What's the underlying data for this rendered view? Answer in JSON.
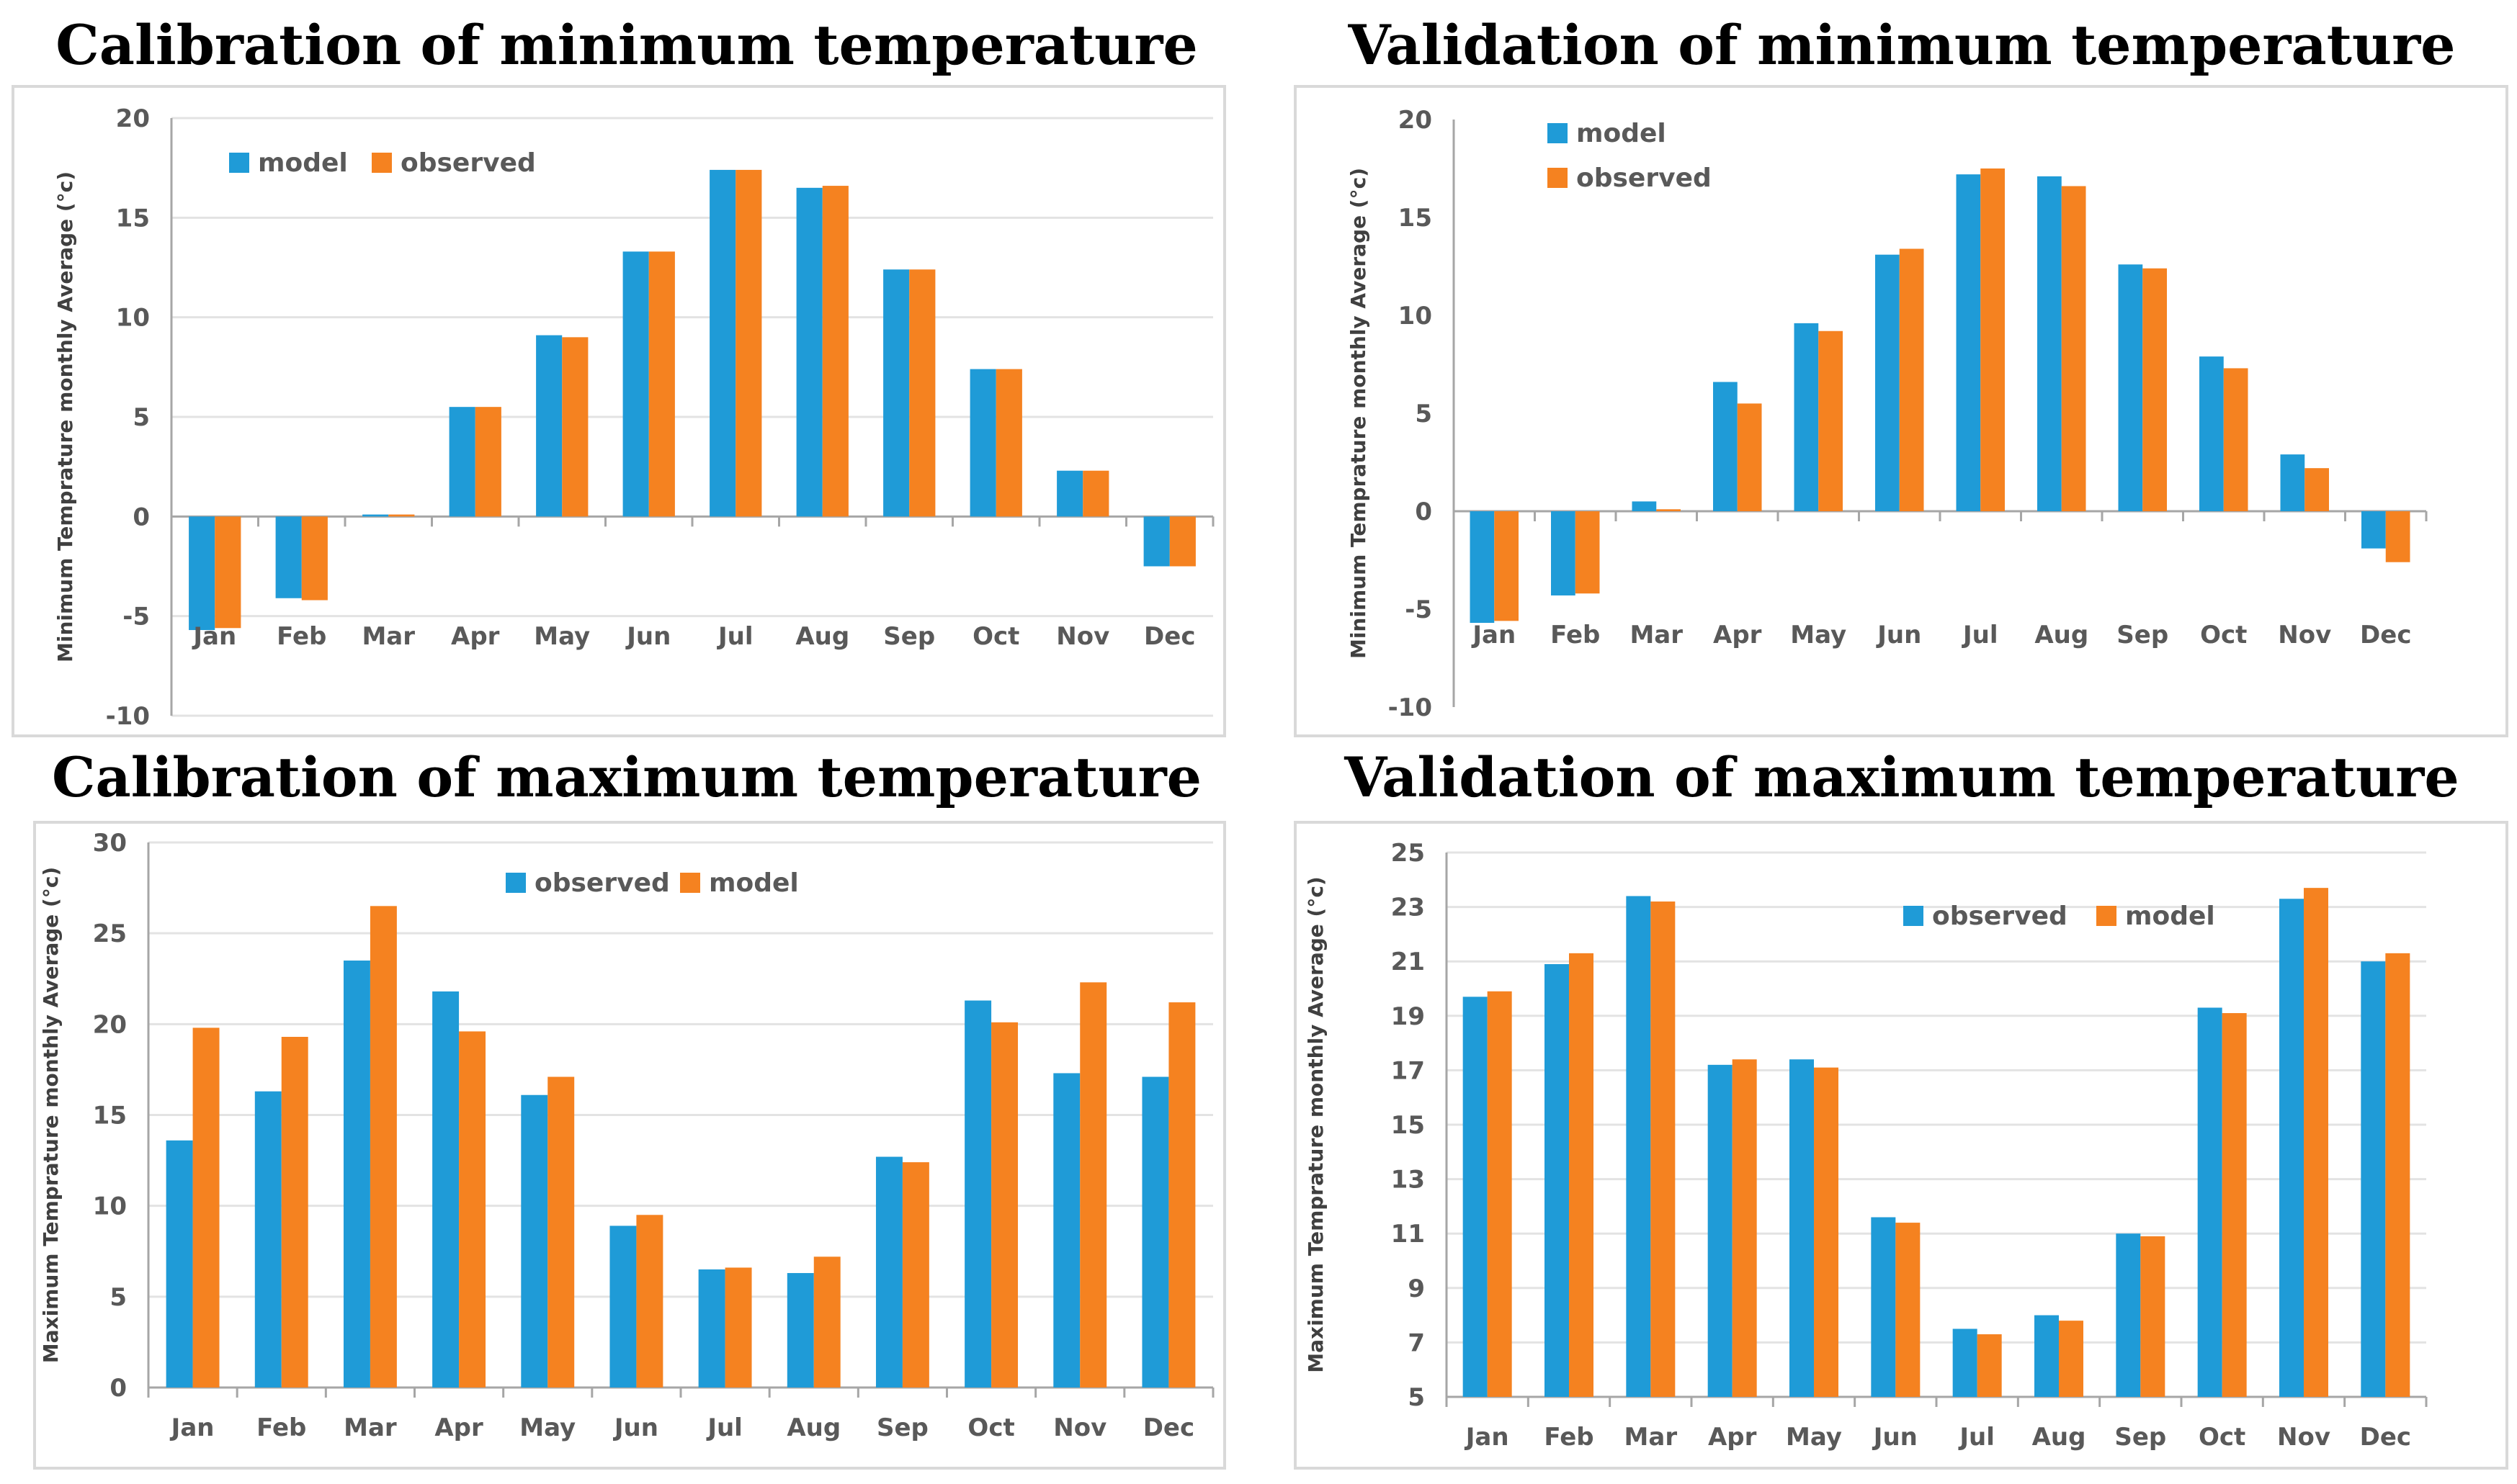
{
  "colors": {
    "blue": "#1f9bd7",
    "orange": "#f58220",
    "axis": "#a6a6a6",
    "grid": "#e3e3e3"
  },
  "chart_data": [
    {
      "type": "bar",
      "title": "Calibration of minimum temperature",
      "ylabel": "Minimum Temprature monthly Average (°c)",
      "categories": [
        "Jan",
        "Feb",
        "Mar",
        "Apr",
        "May",
        "Jun",
        "Jul",
        "Aug",
        "Sep",
        "Oct",
        "Nov",
        "Dec"
      ],
      "ylim": [
        -10,
        20
      ],
      "yticks": [
        -10,
        -5,
        0,
        5,
        10,
        15,
        20
      ],
      "grid": true,
      "legend_position": "top-left",
      "series": [
        {
          "name": "model",
          "color": "blue",
          "values": [
            -5.7,
            -4.1,
            0.1,
            5.5,
            9.1,
            13.3,
            17.4,
            16.5,
            12.4,
            7.4,
            2.3,
            -2.5
          ]
        },
        {
          "name": "observed",
          "color": "orange",
          "values": [
            -5.6,
            -4.2,
            0.1,
            5.5,
            9.0,
            13.3,
            17.4,
            16.6,
            12.4,
            7.4,
            2.3,
            -2.5
          ]
        }
      ]
    },
    {
      "type": "bar",
      "title": "Validation of minimum temperature",
      "ylabel": "Minimum Temprature monthly Average (°c)",
      "categories": [
        "Jan",
        "Feb",
        "Mar",
        "Apr",
        "May",
        "Jun",
        "Jul",
        "Aug",
        "Sep",
        "Oct",
        "Nov",
        "Dec"
      ],
      "ylim": [
        -10,
        20
      ],
      "yticks": [
        -10,
        -5,
        0,
        5,
        10,
        15,
        20
      ],
      "grid": false,
      "legend_position": "top-left",
      "series": [
        {
          "name": "model",
          "color": "blue",
          "values": [
            -5.7,
            -4.3,
            0.5,
            6.6,
            9.6,
            13.1,
            17.2,
            17.1,
            12.6,
            7.9,
            2.9,
            -1.9
          ]
        },
        {
          "name": "observed",
          "color": "orange",
          "values": [
            -5.6,
            -4.2,
            0.1,
            5.5,
            9.2,
            13.4,
            17.5,
            16.6,
            12.4,
            7.3,
            2.2,
            -2.6
          ]
        }
      ]
    },
    {
      "type": "bar",
      "title": "Calibration of maximum temperature",
      "ylabel": "Maximum Temprature monthly Average (°c)",
      "categories": [
        "Jan",
        "Feb",
        "Mar",
        "Apr",
        "May",
        "Jun",
        "Jul",
        "Aug",
        "Sep",
        "Oct",
        "Nov",
        "Dec"
      ],
      "ylim": [
        0,
        30
      ],
      "yticks": [
        0,
        5,
        10,
        15,
        20,
        25,
        30
      ],
      "grid": true,
      "legend_position": "top-center",
      "series": [
        {
          "name": "observed",
          "color": "blue",
          "values": [
            13.6,
            16.3,
            23.5,
            21.8,
            16.1,
            8.9,
            6.5,
            6.3,
            12.7,
            21.3,
            17.3,
            17.1
          ]
        },
        {
          "name": "model",
          "color": "orange",
          "values": [
            19.8,
            19.3,
            26.5,
            19.6,
            17.1,
            9.5,
            6.6,
            7.2,
            12.4,
            20.1,
            22.3,
            21.2
          ]
        }
      ]
    },
    {
      "type": "bar",
      "title": "Validation of maximum temperature",
      "ylabel": "Maximum Temprature monthly Average (°c)",
      "categories": [
        "Jan",
        "Feb",
        "Mar",
        "Apr",
        "May",
        "Jun",
        "Jul",
        "Aug",
        "Sep",
        "Oct",
        "Nov",
        "Dec"
      ],
      "ylim": [
        5,
        25
      ],
      "yticks": [
        5,
        7,
        9,
        11,
        13,
        15,
        17,
        19,
        21,
        23,
        25
      ],
      "grid": true,
      "legend_position": "top-center",
      "series": [
        {
          "name": "observed",
          "color": "blue",
          "values": [
            19.7,
            20.9,
            23.4,
            17.2,
            17.4,
            11.6,
            7.5,
            8.0,
            11.0,
            19.3,
            23.3,
            21.0
          ]
        },
        {
          "name": "model",
          "color": "orange",
          "values": [
            19.9,
            21.3,
            23.2,
            17.4,
            17.1,
            11.4,
            7.3,
            7.8,
            10.9,
            19.1,
            23.7,
            21.3
          ]
        }
      ]
    }
  ]
}
